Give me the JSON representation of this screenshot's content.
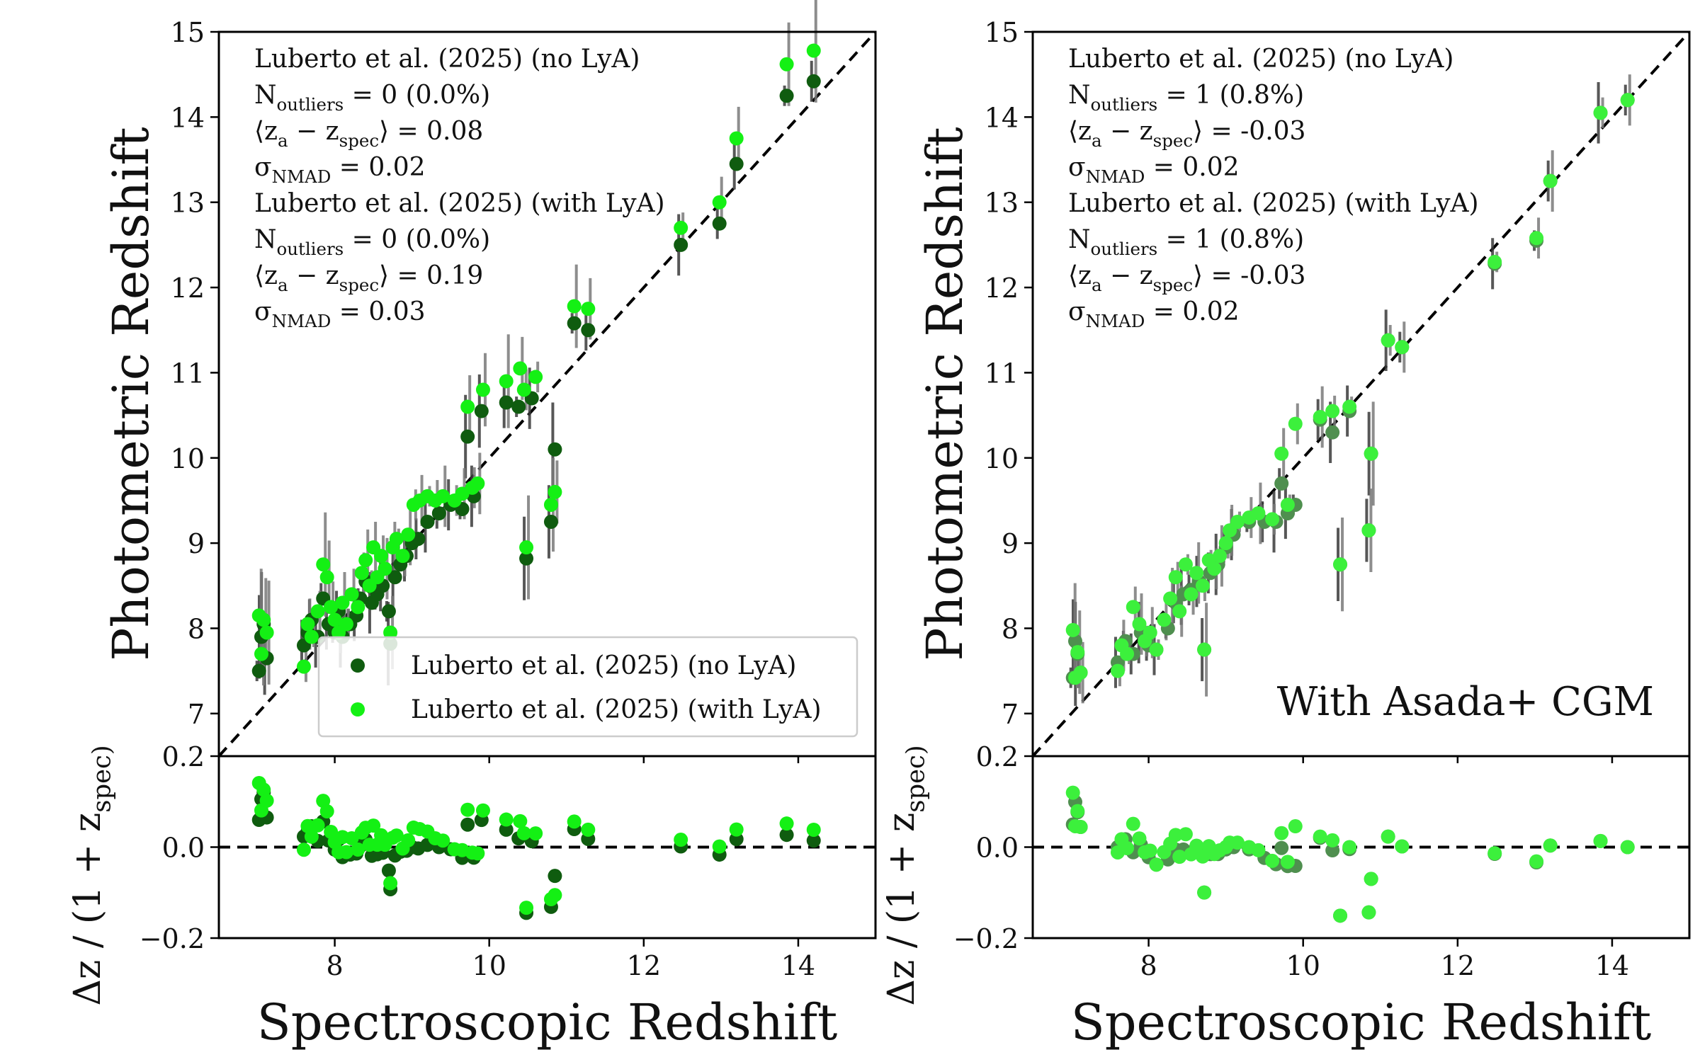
{
  "chart_data": [
    {
      "type": "scatter",
      "panel": "left",
      "xlabel": "Spectroscopic Redshift",
      "ylabel": "Photometric Redshift",
      "residual_ylabel": "Δz / (1 + z_spec)",
      "xlim": [
        6.5,
        15
      ],
      "ylim": [
        6.5,
        15
      ],
      "residual_ylim": [
        -0.2,
        0.2
      ],
      "x_ticks": [
        "8",
        "10",
        "12",
        "14"
      ],
      "y_ticks": [
        "7",
        "8",
        "9",
        "10",
        "11",
        "12",
        "13",
        "14",
        "15"
      ],
      "residual_ticks": [
        "0.2",
        "0.0",
        "−0.2"
      ],
      "stats_lines": [
        "Luberto et al. (2025) (no LyA)",
        "N_outliers = 0 (0.0%)",
        "⟨z_a − z_spec⟩ = 0.08",
        "σ_NMAD = 0.02",
        "Luberto et al. (2025) (with LyA)",
        "N_outliers = 0 (0.0%)",
        "⟨z_a − z_spec⟩ = 0.19",
        "σ_NMAD = 0.03"
      ],
      "legend": {
        "placement": "lower-right",
        "entries": [
          "Luberto et al. (2025) (no LyA)",
          "Luberto et al. (2025) (with LyA)"
        ]
      },
      "annotation": "",
      "series": [
        {
          "name": "Luberto et al. (2025) (no LyA)",
          "color": "#0f5c0f",
          "points": [
            [
              7.02,
              7.5
            ],
            [
              7.05,
              7.9
            ],
            [
              7.08,
              8.05
            ],
            [
              7.12,
              7.65
            ],
            [
              7.6,
              7.8
            ],
            [
              7.65,
              7.95
            ],
            [
              7.7,
              8.1
            ],
            [
              7.78,
              7.9
            ],
            [
              7.85,
              8.35
            ],
            [
              7.92,
              8.05
            ],
            [
              8.0,
              7.95
            ],
            [
              8.05,
              8.2
            ],
            [
              8.1,
              7.9
            ],
            [
              8.2,
              8.05
            ],
            [
              8.28,
              8.15
            ],
            [
              8.33,
              8.35
            ],
            [
              8.4,
              8.55
            ],
            [
              8.48,
              8.3
            ],
            [
              8.55,
              8.4
            ],
            [
              8.62,
              8.5
            ],
            [
              8.7,
              8.2
            ],
            [
              8.72,
              7.82
            ],
            [
              8.78,
              8.6
            ],
            [
              8.85,
              8.75
            ],
            [
              8.93,
              8.85
            ],
            [
              9.0,
              9.0
            ],
            [
              9.08,
              9.05
            ],
            [
              9.2,
              9.25
            ],
            [
              9.35,
              9.35
            ],
            [
              9.5,
              9.45
            ],
            [
              9.65,
              9.4
            ],
            [
              9.72,
              10.25
            ],
            [
              9.8,
              9.55
            ],
            [
              9.9,
              10.55
            ],
            [
              10.22,
              10.65
            ],
            [
              10.38,
              10.6
            ],
            [
              10.48,
              8.82
            ],
            [
              10.55,
              10.7
            ],
            [
              10.8,
              9.25
            ],
            [
              10.85,
              10.1
            ],
            [
              11.1,
              11.58
            ],
            [
              11.28,
              11.5
            ],
            [
              12.48,
              12.5
            ],
            [
              12.98,
              12.75
            ],
            [
              13.2,
              13.45
            ],
            [
              13.85,
              14.25
            ],
            [
              14.2,
              14.42
            ]
          ]
        },
        {
          "name": "Luberto et al. (2025) (with LyA)",
          "color": "#14f014",
          "points": [
            [
              7.02,
              8.15
            ],
            [
              7.05,
              7.7
            ],
            [
              7.08,
              8.1
            ],
            [
              7.12,
              7.95
            ],
            [
              7.6,
              7.55
            ],
            [
              7.65,
              8.05
            ],
            [
              7.7,
              7.9
            ],
            [
              7.78,
              8.2
            ],
            [
              7.85,
              8.75
            ],
            [
              7.9,
              8.6
            ],
            [
              7.95,
              8.25
            ],
            [
              8.0,
              8.1
            ],
            [
              8.05,
              7.95
            ],
            [
              8.1,
              8.3
            ],
            [
              8.15,
              8.05
            ],
            [
              8.22,
              8.4
            ],
            [
              8.3,
              8.25
            ],
            [
              8.35,
              8.65
            ],
            [
              8.4,
              8.8
            ],
            [
              8.45,
              8.5
            ],
            [
              8.5,
              8.95
            ],
            [
              8.55,
              8.6
            ],
            [
              8.6,
              8.85
            ],
            [
              8.65,
              8.7
            ],
            [
              8.72,
              7.95
            ],
            [
              8.75,
              8.95
            ],
            [
              8.8,
              9.05
            ],
            [
              8.88,
              8.85
            ],
            [
              8.95,
              9.1
            ],
            [
              9.02,
              9.45
            ],
            [
              9.1,
              9.5
            ],
            [
              9.2,
              9.55
            ],
            [
              9.3,
              9.5
            ],
            [
              9.4,
              9.55
            ],
            [
              9.55,
              9.5
            ],
            [
              9.65,
              9.58
            ],
            [
              9.72,
              10.6
            ],
            [
              9.78,
              9.65
            ],
            [
              9.85,
              9.7
            ],
            [
              9.92,
              10.8
            ],
            [
              10.22,
              10.9
            ],
            [
              10.4,
              11.05
            ],
            [
              10.45,
              10.8
            ],
            [
              10.48,
              8.95
            ],
            [
              10.6,
              10.95
            ],
            [
              10.8,
              9.45
            ],
            [
              10.85,
              9.6
            ],
            [
              11.1,
              11.78
            ],
            [
              11.28,
              11.75
            ],
            [
              12.48,
              12.7
            ],
            [
              12.98,
              13.0
            ],
            [
              13.2,
              13.75
            ],
            [
              13.85,
              14.62
            ],
            [
              14.2,
              14.78
            ]
          ]
        }
      ]
    },
    {
      "type": "scatter",
      "panel": "right",
      "xlabel": "Spectroscopic Redshift",
      "ylabel": "Photometric Redshift",
      "residual_ylabel": "Δz / (1 + z_spec)",
      "xlim": [
        6.5,
        15
      ],
      "ylim": [
        6.5,
        15
      ],
      "residual_ylim": [
        -0.2,
        0.2
      ],
      "x_ticks": [
        "8",
        "10",
        "12",
        "14"
      ],
      "y_ticks": [
        "7",
        "8",
        "9",
        "10",
        "11",
        "12",
        "13",
        "14",
        "15"
      ],
      "residual_ticks": [
        "0.2",
        "0.0",
        "−0.2"
      ],
      "stats_lines": [
        "Luberto et al. (2025) (no LyA)",
        "N_outliers = 1 (0.8%)",
        "⟨z_a − z_spec⟩ = -0.03",
        "σ_NMAD = 0.02",
        "Luberto et al. (2025) (with LyA)",
        "N_outliers = 1 (0.8%)",
        "⟨z_a − z_spec⟩ = -0.03",
        "σ_NMAD = 0.02"
      ],
      "legend": null,
      "annotation": "With Asada+ CGM",
      "series": [
        {
          "name": "Luberto et al. (2025) (no LyA)",
          "color": "#4f8f4f",
          "points": [
            [
              7.02,
              7.42
            ],
            [
              7.05,
              7.85
            ],
            [
              7.08,
              7.7
            ],
            [
              7.12,
              7.48
            ],
            [
              7.6,
              7.6
            ],
            [
              7.7,
              7.85
            ],
            [
              7.8,
              7.7
            ],
            [
              7.9,
              7.95
            ],
            [
              8.0,
              7.8
            ],
            [
              8.1,
              7.75
            ],
            [
              8.25,
              8.0
            ],
            [
              8.35,
              8.3
            ],
            [
              8.45,
              8.4
            ],
            [
              8.55,
              8.45
            ],
            [
              8.65,
              8.55
            ],
            [
              8.72,
              7.75
            ],
            [
              8.8,
              8.65
            ],
            [
              8.9,
              8.75
            ],
            [
              9.0,
              8.95
            ],
            [
              9.1,
              9.1
            ],
            [
              9.3,
              9.25
            ],
            [
              9.5,
              9.25
            ],
            [
              9.65,
              9.25
            ],
            [
              9.72,
              9.7
            ],
            [
              9.8,
              9.35
            ],
            [
              9.9,
              9.45
            ],
            [
              10.22,
              10.45
            ],
            [
              10.38,
              10.3
            ],
            [
              10.48,
              8.75
            ],
            [
              10.6,
              10.55
            ],
            [
              10.85,
              9.15
            ],
            [
              10.88,
              10.05
            ],
            [
              11.1,
              11.38
            ],
            [
              11.28,
              11.3
            ],
            [
              12.48,
              12.28
            ],
            [
              13.02,
              12.55
            ],
            [
              13.2,
              13.25
            ],
            [
              13.85,
              14.05
            ],
            [
              14.2,
              14.2
            ]
          ]
        },
        {
          "name": "Luberto et al. (2025) (with LyA)",
          "color": "#3cf03c",
          "points": [
            [
              7.02,
              7.98
            ],
            [
              7.05,
              7.42
            ],
            [
              7.08,
              7.72
            ],
            [
              7.12,
              7.48
            ],
            [
              7.6,
              7.5
            ],
            [
              7.65,
              7.8
            ],
            [
              7.72,
              7.7
            ],
            [
              7.8,
              8.25
            ],
            [
              7.88,
              8.05
            ],
            [
              7.95,
              7.85
            ],
            [
              8.02,
              7.95
            ],
            [
              8.1,
              7.75
            ],
            [
              8.2,
              8.1
            ],
            [
              8.28,
              8.35
            ],
            [
              8.35,
              8.6
            ],
            [
              8.4,
              8.2
            ],
            [
              8.48,
              8.75
            ],
            [
              8.55,
              8.4
            ],
            [
              8.62,
              8.65
            ],
            [
              8.7,
              8.5
            ],
            [
              8.72,
              7.75
            ],
            [
              8.78,
              8.8
            ],
            [
              8.85,
              8.7
            ],
            [
              8.92,
              8.85
            ],
            [
              9.0,
              9.0
            ],
            [
              9.05,
              9.15
            ],
            [
              9.15,
              9.25
            ],
            [
              9.3,
              9.3
            ],
            [
              9.42,
              9.35
            ],
            [
              9.6,
              9.28
            ],
            [
              9.72,
              10.05
            ],
            [
              9.8,
              9.45
            ],
            [
              9.9,
              10.4
            ],
            [
              10.22,
              10.48
            ],
            [
              10.38,
              10.55
            ],
            [
              10.48,
              8.75
            ],
            [
              10.6,
              10.6
            ],
            [
              10.85,
              9.15
            ],
            [
              10.88,
              10.05
            ],
            [
              11.1,
              11.38
            ],
            [
              11.28,
              11.3
            ],
            [
              12.48,
              12.3
            ],
            [
              13.02,
              12.58
            ],
            [
              13.2,
              13.25
            ],
            [
              13.85,
              14.05
            ],
            [
              14.2,
              14.2
            ]
          ]
        }
      ]
    }
  ]
}
